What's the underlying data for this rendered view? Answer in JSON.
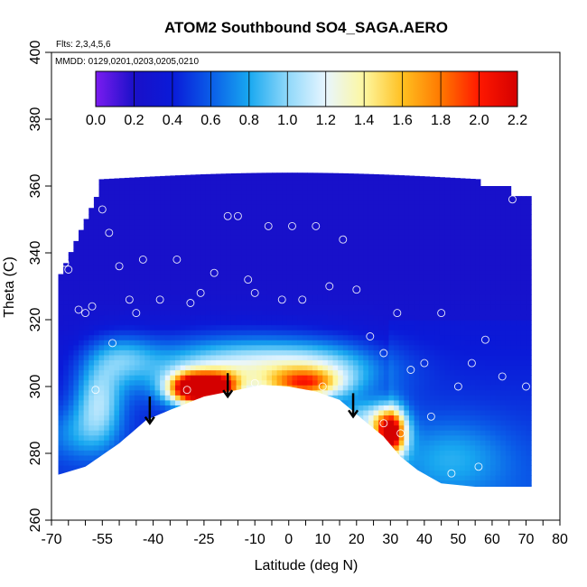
{
  "chart_data": {
    "type": "heatmap",
    "title": "ATOM2 Southbound SO4_SAGA.AERO",
    "flights_note": "Flts: 2,3,4,5,6",
    "dates_note": "MMDD: 0129,0201,0203,0205,0210",
    "xlabel": "Latitude (deg N)",
    "ylabel": "Theta (C)",
    "xlim": [
      -70,
      80
    ],
    "ylim": [
      260,
      400
    ],
    "x_tick_labels": [
      {
        "value": -70,
        "label": "-70"
      },
      {
        "value": -55,
        "label": "-55"
      },
      {
        "value": -40,
        "label": "-40"
      },
      {
        "value": -25,
        "label": "-25"
      },
      {
        "value": -10,
        "label": "-10"
      },
      {
        "value": 0,
        "label": "0"
      },
      {
        "value": 10,
        "label": "10"
      },
      {
        "value": 20,
        "label": "20"
      },
      {
        "value": 30,
        "label": "30"
      },
      {
        "value": 40,
        "label": "40"
      },
      {
        "value": 50,
        "label": "50"
      },
      {
        "value": 60,
        "label": "60"
      },
      {
        "value": 70,
        "label": "70"
      },
      {
        "value": 80,
        "label": "80"
      }
    ],
    "y_ticks": [
      260,
      280,
      300,
      320,
      340,
      360,
      380,
      400
    ],
    "colorbar": {
      "min": 0.0,
      "max": 2.2,
      "tick_labels": [
        "0.0",
        "0.2",
        "0.4",
        "0.6",
        "0.8",
        "1.0",
        "1.2",
        "1.4",
        "1.6",
        "1.8",
        "2.0",
        "2.2"
      ],
      "colors": [
        "#7b1cf0",
        "#1a10c8",
        "#0a1ad8",
        "#0a5ce8",
        "#18a8f0",
        "#8fd8fa",
        "#e8f6ff",
        "#fdf7a0",
        "#ffc020",
        "#ff7800",
        "#ff1800",
        "#d40000"
      ]
    },
    "terrain_boundary_theta": [
      {
        "lat": -70,
        "theta": 273
      },
      {
        "lat": -60,
        "theta": 276
      },
      {
        "lat": -50,
        "theta": 283
      },
      {
        "lat": -42,
        "theta": 290
      },
      {
        "lat": -35,
        "theta": 293
      },
      {
        "lat": -25,
        "theta": 297
      },
      {
        "lat": -15,
        "theta": 299
      },
      {
        "lat": -8,
        "theta": 300.5
      },
      {
        "lat": 0,
        "theta": 300
      },
      {
        "lat": 8,
        "theta": 298.5
      },
      {
        "lat": 15,
        "theta": 296
      },
      {
        "lat": 22,
        "theta": 290
      },
      {
        "lat": 28,
        "theta": 285
      },
      {
        "lat": 33,
        "theta": 279
      },
      {
        "lat": 38,
        "theta": 275
      },
      {
        "lat": 45,
        "theta": 271
      },
      {
        "lat": 55,
        "theta": 270
      },
      {
        "lat": 72,
        "theta": 270
      }
    ],
    "arrows": [
      {
        "lat": -41,
        "theta_top": 297,
        "theta_tip": 289
      },
      {
        "lat": -18,
        "theta_top": 304,
        "theta_tip": 297
      },
      {
        "lat": 19,
        "theta_top": 298,
        "theta_tip": 291
      }
    ],
    "observations": [
      {
        "lat": -66,
        "theta": 337,
        "value": 0.2
      },
      {
        "lat": -65,
        "theta": 335,
        "value": 0.2
      },
      {
        "lat": -62,
        "theta": 323,
        "value": 0.3
      },
      {
        "lat": -60,
        "theta": 322,
        "value": 0.3
      },
      {
        "lat": -58,
        "theta": 324,
        "value": 0.3
      },
      {
        "lat": -55,
        "theta": 353,
        "value": 0.1
      },
      {
        "lat": -53,
        "theta": 346,
        "value": 0.1
      },
      {
        "lat": -50,
        "theta": 336,
        "value": 0.2
      },
      {
        "lat": -47,
        "theta": 326,
        "value": 0.2
      },
      {
        "lat": -45,
        "theta": 322,
        "value": 0.3
      },
      {
        "lat": -43,
        "theta": 338,
        "value": 0.1
      },
      {
        "lat": -38,
        "theta": 326,
        "value": 0.2
      },
      {
        "lat": -33,
        "theta": 338,
        "value": 0.1
      },
      {
        "lat": -29,
        "theta": 325,
        "value": 0.2
      },
      {
        "lat": -26,
        "theta": 328,
        "value": 0.2
      },
      {
        "lat": -22,
        "theta": 334,
        "value": 0.1
      },
      {
        "lat": -18,
        "theta": 351,
        "value": 0.1
      },
      {
        "lat": -15,
        "theta": 351,
        "value": 0.1
      },
      {
        "lat": -12,
        "theta": 332,
        "value": 0.2
      },
      {
        "lat": -10,
        "theta": 328,
        "value": 0.2
      },
      {
        "lat": -6,
        "theta": 348,
        "value": 0.1
      },
      {
        "lat": -2,
        "theta": 326,
        "value": 0.2
      },
      {
        "lat": 1,
        "theta": 348,
        "value": 0.1
      },
      {
        "lat": 4,
        "theta": 326,
        "value": 0.2
      },
      {
        "lat": 8,
        "theta": 348,
        "value": 0.1
      },
      {
        "lat": 12,
        "theta": 330,
        "value": 0.2
      },
      {
        "lat": 16,
        "theta": 344,
        "value": 0.1
      },
      {
        "lat": 20,
        "theta": 329,
        "value": 0.2
      },
      {
        "lat": 24,
        "theta": 315,
        "value": 0.3
      },
      {
        "lat": 28,
        "theta": 310,
        "value": 0.3
      },
      {
        "lat": 32,
        "theta": 322,
        "value": 0.2
      },
      {
        "lat": 36,
        "theta": 305,
        "value": 0.3
      },
      {
        "lat": 40,
        "theta": 307,
        "value": 0.3
      },
      {
        "lat": 45,
        "theta": 322,
        "value": 0.2
      },
      {
        "lat": 50,
        "theta": 300,
        "value": 0.4
      },
      {
        "lat": 54,
        "theta": 307,
        "value": 0.3
      },
      {
        "lat": 58,
        "theta": 314,
        "value": 0.2
      },
      {
        "lat": 63,
        "theta": 303,
        "value": 0.4
      },
      {
        "lat": 66,
        "theta": 356,
        "value": 0.1
      },
      {
        "lat": 70,
        "theta": 300,
        "value": 0.4
      },
      {
        "lat": -57,
        "theta": 299,
        "value": 0.8
      },
      {
        "lat": -52,
        "theta": 313,
        "value": 0.6
      },
      {
        "lat": -30,
        "theta": 299,
        "value": 1.7
      },
      {
        "lat": -10,
        "theta": 301,
        "value": 1.0
      },
      {
        "lat": 10,
        "theta": 300,
        "value": 1.2
      },
      {
        "lat": 28,
        "theta": 289,
        "value": 1.8
      },
      {
        "lat": 33,
        "theta": 286,
        "value": 1.6
      },
      {
        "lat": 42,
        "theta": 291,
        "value": 0.6
      },
      {
        "lat": 48,
        "theta": 274,
        "value": 0.5
      },
      {
        "lat": 56,
        "theta": 276,
        "value": 0.5
      }
    ]
  }
}
